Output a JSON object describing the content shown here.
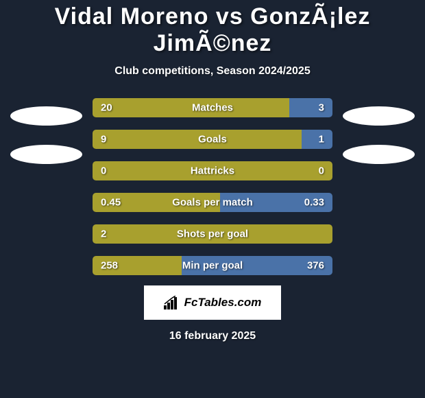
{
  "title": "Vidal Moreno vs GonzÃ¡lez JimÃ©nez",
  "subtitle": "Club competitions, Season 2024/2025",
  "date": "16 february 2025",
  "logo": {
    "text": "FcTables.com"
  },
  "colors": {
    "background": "#1a2332",
    "bar_left": "#a8a02e",
    "bar_right": "#4a72a8",
    "ellipse": "#ffffff",
    "logo_bg": "#ffffff",
    "text": "#ffffff"
  },
  "bars": [
    {
      "label": "Matches",
      "left_val": "20",
      "right_val": "3",
      "left_pct": 82
    },
    {
      "label": "Goals",
      "left_val": "9",
      "right_val": "1",
      "left_pct": 87
    },
    {
      "label": "Hattricks",
      "left_val": "0",
      "right_val": "0",
      "left_pct": 100
    },
    {
      "label": "Goals per match",
      "left_val": "0.45",
      "right_val": "0.33",
      "left_pct": 53
    },
    {
      "label": "Shots per goal",
      "left_val": "2",
      "right_val": "",
      "left_pct": 100
    },
    {
      "label": "Min per goal",
      "left_val": "258",
      "right_val": "376",
      "left_pct": 37
    }
  ]
}
